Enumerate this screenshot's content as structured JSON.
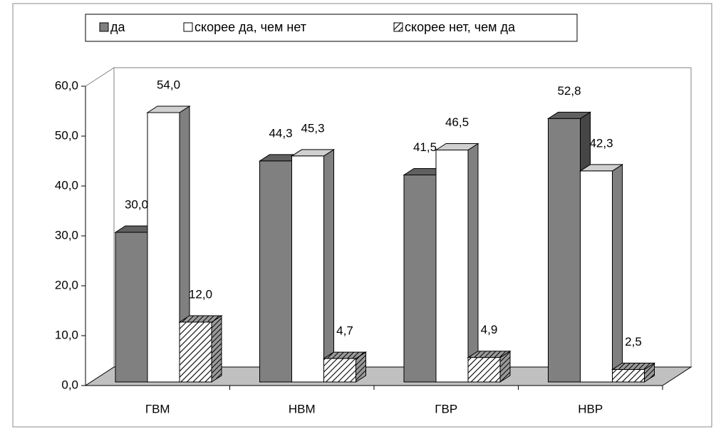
{
  "chart_data": {
    "type": "bar3d",
    "categories": [
      "ГВМ",
      "НВМ",
      "ГВР",
      "НВР"
    ],
    "series": [
      {
        "name": "да",
        "color": "#808080",
        "values": [
          30.0,
          44.3,
          41.5,
          52.8
        ],
        "value_labels": [
          "30,0",
          "44,3",
          "41,5",
          "52,8"
        ]
      },
      {
        "name": "скорее да, чем нет",
        "color": "#ffffff",
        "values": [
          54.0,
          45.3,
          46.5,
          42.3
        ],
        "value_labels": [
          "54,0",
          "45,3",
          "46,5",
          "42,3"
        ]
      },
      {
        "name": "скорее нет, чем да",
        "color": "#ffffff",
        "pattern": "hatch",
        "values": [
          12.0,
          4.7,
          4.9,
          2.5
        ],
        "value_labels": [
          "12,0",
          "4,7",
          "4,9",
          "2,5"
        ]
      }
    ],
    "ylim": [
      0,
      60
    ],
    "yticks": [
      {
        "value": 0,
        "label": "0,0"
      },
      {
        "value": 10,
        "label": "10,0"
      },
      {
        "value": 20,
        "label": "20,0"
      },
      {
        "value": 30,
        "label": "30,0"
      },
      {
        "value": 40,
        "label": "40,0"
      },
      {
        "value": 50,
        "label": "50,0"
      },
      {
        "value": 60,
        "label": "60,0"
      }
    ],
    "legend": "top"
  }
}
